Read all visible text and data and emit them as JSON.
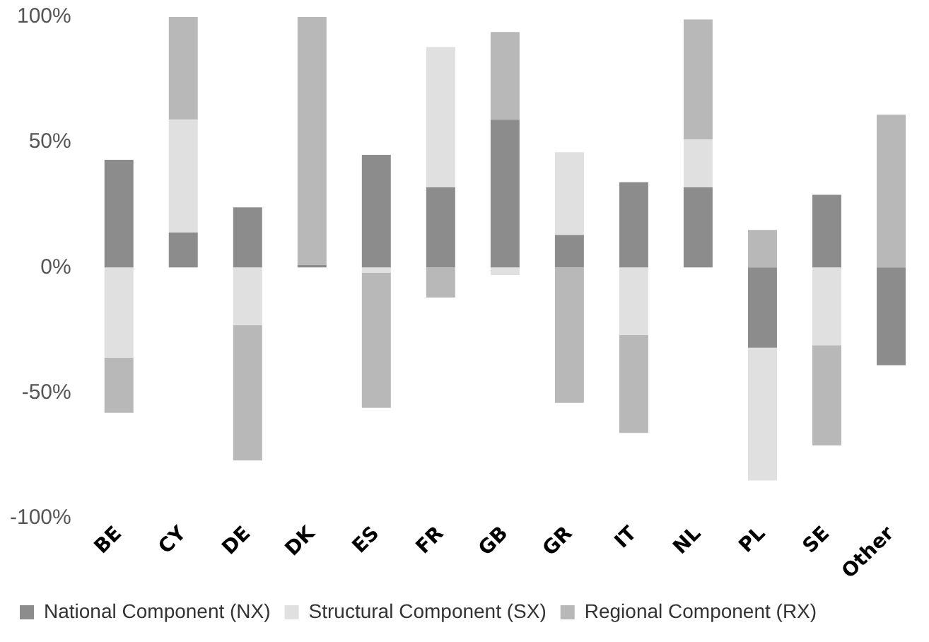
{
  "chart_data": {
    "type": "bar",
    "stacked": true,
    "categories": [
      "BE",
      "CY",
      "DE",
      "DK",
      "ES",
      "FR",
      "GB",
      "GR",
      "IT",
      "NL",
      "PL",
      "SE",
      "Other"
    ],
    "series": [
      {
        "name": "National Component (NX)",
        "color": "#8c8c8c",
        "values": [
          43,
          14,
          24,
          1,
          45,
          32,
          59,
          13,
          34,
          32,
          -32,
          29,
          -39
        ]
      },
      {
        "name": "Structural Component (SX)",
        "color": "#e0e0e0",
        "values": [
          -36,
          45,
          -23,
          null,
          -2,
          56,
          -3,
          33,
          -27,
          19,
          -53,
          -31,
          null
        ]
      },
      {
        "name": "Regional Component (RX)",
        "color": "#b8b8b8",
        "values": [
          -22,
          41,
          -54,
          99,
          -54,
          -12,
          35,
          -54,
          -39,
          48,
          15,
          -40,
          61
        ]
      }
    ],
    "ylim": [
      -100,
      100
    ],
    "yticks": [
      {
        "value": -100,
        "label": "-100%"
      },
      {
        "value": -50,
        "label": "-50%"
      },
      {
        "value": 0,
        "label": "0%"
      },
      {
        "value": 50,
        "label": "50%"
      },
      {
        "value": 100,
        "label": "100%"
      }
    ],
    "grid": false,
    "legend": "bottom"
  }
}
